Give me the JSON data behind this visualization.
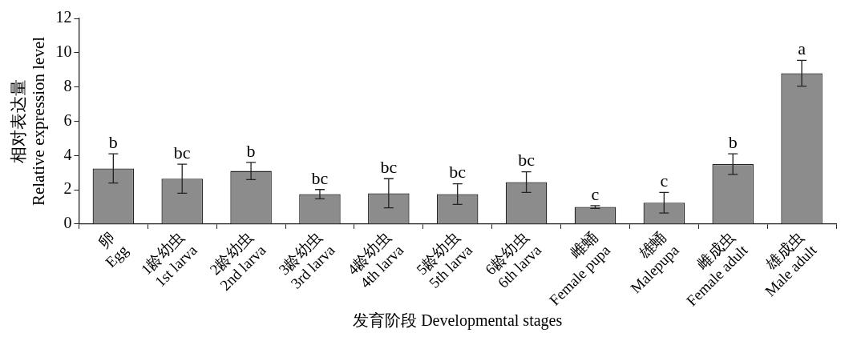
{
  "chart_data": {
    "type": "bar",
    "xlabel": "发育阶段 Developmental stages",
    "ylabel": "相对表达量\nRelative expression level",
    "categories": [
      "卵\nEgg",
      "1龄幼虫\n1st larva",
      "2龄幼虫\n2nd larva",
      "3龄幼虫\n3rd larva",
      "4龄幼虫\n4th larva",
      "5龄幼虫\n5th larva",
      "6龄幼虫\n6th larva",
      "雌蛹\nFemale pupa",
      "雄蛹\nMalepupa",
      "雌成虫\nFemale adult",
      "雄成虫\nMale adult"
    ],
    "values": [
      3.25,
      2.65,
      3.1,
      1.75,
      1.8,
      1.75,
      2.45,
      1.0,
      1.25,
      3.5,
      8.8
    ],
    "errors": [
      0.85,
      0.85,
      0.5,
      0.27,
      0.85,
      0.6,
      0.6,
      0.08,
      0.6,
      0.6,
      0.75
    ],
    "color": "#8c8c8c",
    "ylim": [
      0,
      12
    ],
    "yticks": [
      0,
      2,
      4,
      6,
      8,
      10,
      12
    ],
    "grid": false,
    "legend": false,
    "value_labels": [
      "b",
      "bc",
      "b",
      "bc",
      "bc",
      "bc",
      "bc",
      "c",
      "c",
      "b",
      "a"
    ]
  }
}
